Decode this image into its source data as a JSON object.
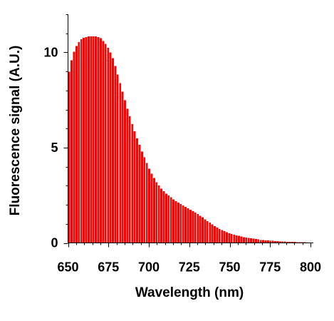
{
  "chart_data": {
    "type": "bar",
    "title": "",
    "xlabel": "Wavelength (nm)",
    "ylabel": "Fluorescence signal (A.U.)",
    "xlim": [
      650,
      800
    ],
    "ylim": [
      0,
      12
    ],
    "x_ticks": [
      "650",
      "675",
      "700",
      "725",
      "750",
      "775",
      "800"
    ],
    "y_ticks": [
      "0",
      "5",
      "10"
    ],
    "grid": false,
    "legend": "none",
    "bar_color": "#ff0000",
    "x": [
      650,
      651.5,
      653,
      654.5,
      656,
      657.5,
      659,
      660.5,
      662,
      663.5,
      665,
      666.5,
      668,
      669.5,
      671,
      672.5,
      674,
      675.5,
      677,
      678.5,
      680,
      681.5,
      683,
      684.5,
      686,
      687.5,
      689,
      690.5,
      692,
      693.5,
      695,
      696.5,
      698,
      699.5,
      701,
      702.5,
      704,
      705.5,
      707,
      708.5,
      710,
      711.5,
      713,
      714.5,
      716,
      717.5,
      719,
      720.5,
      722,
      723.5,
      725,
      726.5,
      728,
      729.5,
      731,
      732.5,
      734,
      735.5,
      737,
      738.5,
      740,
      741.5,
      743,
      744.5,
      746,
      747.5,
      749,
      750.5,
      752,
      753.5,
      755,
      756.5,
      758,
      759.5,
      761,
      762.5,
      764,
      765.5,
      767,
      768.5,
      770,
      771.5,
      773,
      774.5,
      776,
      777.5,
      779,
      780.5,
      782,
      783.5,
      785,
      786.5,
      788,
      789.5,
      791,
      792.5,
      794,
      795.5,
      797,
      798.5
    ],
    "values": [
      9.0,
      9.6,
      10.05,
      10.35,
      10.55,
      10.7,
      10.78,
      10.82,
      10.85,
      10.85,
      10.85,
      10.85,
      10.82,
      10.75,
      10.6,
      10.45,
      10.25,
      10.0,
      9.7,
      9.3,
      8.85,
      8.4,
      7.95,
      7.5,
      7.05,
      6.65,
      6.25,
      5.88,
      5.5,
      5.15,
      4.8,
      4.5,
      4.2,
      3.9,
      3.65,
      3.42,
      3.2,
      3.02,
      2.85,
      2.72,
      2.6,
      2.5,
      2.4,
      2.3,
      2.2,
      2.12,
      2.05,
      1.98,
      1.9,
      1.83,
      1.75,
      1.68,
      1.6,
      1.52,
      1.43,
      1.35,
      1.25,
      1.16,
      1.07,
      0.98,
      0.9,
      0.82,
      0.75,
      0.68,
      0.62,
      0.57,
      0.52,
      0.48,
      0.44,
      0.41,
      0.38,
      0.35,
      0.32,
      0.29,
      0.27,
      0.25,
      0.23,
      0.21,
      0.19,
      0.17,
      0.16,
      0.15,
      0.14,
      0.13,
      0.12,
      0.11,
      0.1,
      0.09,
      0.085,
      0.08,
      0.075,
      0.07,
      0.065,
      0.06,
      0.055,
      0.05,
      0.045,
      0.04,
      0.035,
      0.03
    ]
  }
}
